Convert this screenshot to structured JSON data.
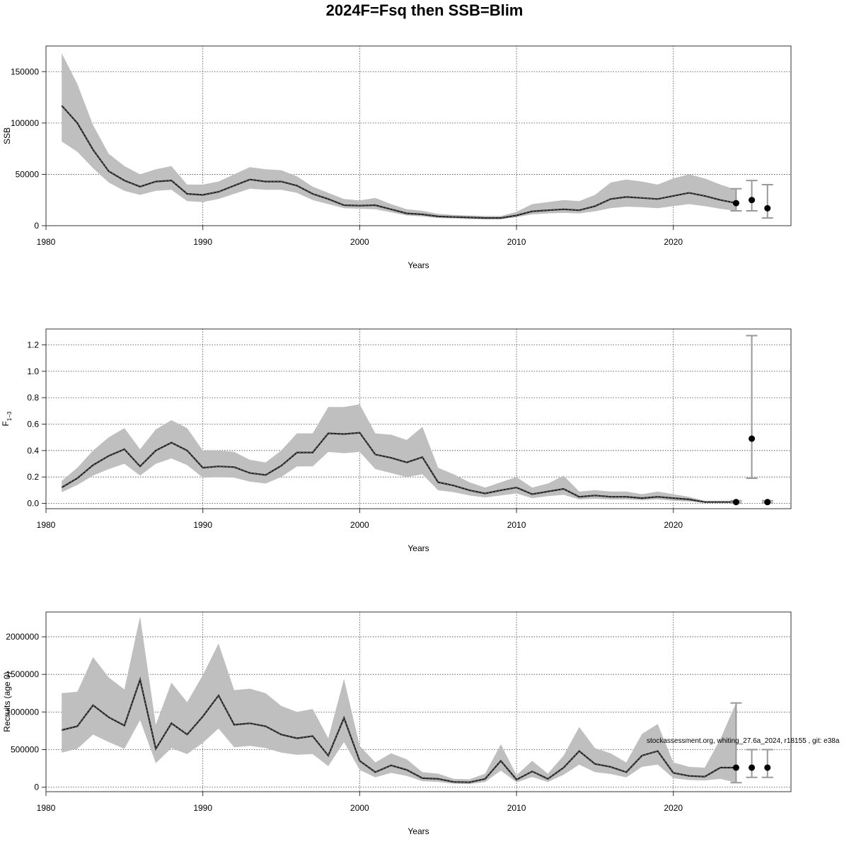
{
  "title": "2024F=Fsq then SSB=Blim",
  "footnote": "stockassessment.org, whiting_27.6a_2024, r18155 , git: e38a",
  "chart_data": [
    {
      "type": "line",
      "panel": "ssb",
      "xlabel": "Years",
      "ylabel": "SSB",
      "xlim": [
        1980,
        2027.5
      ],
      "ylim": [
        0,
        175000
      ],
      "xticks": [
        1980,
        1990,
        2000,
        2010,
        2020
      ],
      "yticks": [
        0,
        50000,
        100000,
        150000
      ],
      "ytick_labels": [
        "0",
        "50000",
        "100000",
        "150000"
      ],
      "grid": true,
      "x": [
        1981,
        1982,
        1983,
        1984,
        1985,
        1986,
        1987,
        1988,
        1989,
        1990,
        1991,
        1992,
        1993,
        1994,
        1995,
        1996,
        1997,
        1998,
        1999,
        2000,
        2001,
        2002,
        2003,
        2004,
        2005,
        2006,
        2007,
        2008,
        2009,
        2010,
        2011,
        2012,
        2013,
        2014,
        2015,
        2016,
        2017,
        2018,
        2019,
        2020,
        2021,
        2022,
        2023,
        2024
      ],
      "estimate": [
        117000,
        100000,
        74000,
        53000,
        44000,
        38000,
        43000,
        44000,
        31000,
        30000,
        33000,
        39000,
        45000,
        43000,
        43000,
        39000,
        31000,
        26000,
        20000,
        19500,
        20000,
        16000,
        12000,
        11000,
        9000,
        8500,
        8000,
        7500,
        7500,
        10000,
        14000,
        15000,
        16000,
        15000,
        19000,
        26000,
        28000,
        27000,
        26000,
        29000,
        32000,
        29000,
        25000,
        22000
      ],
      "lower": [
        82000,
        72000,
        56000,
        42000,
        34000,
        30000,
        34000,
        35000,
        24000,
        23000,
        26000,
        31000,
        36000,
        35000,
        35000,
        32000,
        25000,
        21000,
        17000,
        16500,
        16000,
        13000,
        10000,
        9000,
        7500,
        7000,
        6500,
        6200,
        6200,
        8500,
        11000,
        12000,
        12500,
        12000,
        14000,
        17000,
        18500,
        18000,
        17000,
        19000,
        21000,
        19000,
        16500,
        14500
      ],
      "upper": [
        168000,
        138000,
        98000,
        70000,
        58000,
        50000,
        55000,
        58000,
        40000,
        40000,
        43000,
        50000,
        57000,
        55000,
        54000,
        48000,
        38000,
        32000,
        26000,
        24500,
        27000,
        21000,
        16000,
        14500,
        11500,
        10500,
        10000,
        9500,
        9500,
        13500,
        21000,
        23000,
        25000,
        24000,
        30000,
        42000,
        45000,
        43000,
        40000,
        46000,
        50000,
        46000,
        40000,
        35000
      ],
      "forecast": {
        "x": [
          2024,
          2025,
          2026
        ],
        "value": [
          22000,
          25000,
          17000
        ],
        "lower": [
          14500,
          14500,
          7500
        ],
        "upper": [
          36000,
          44000,
          40000
        ]
      }
    },
    {
      "type": "line",
      "panel": "fbar",
      "xlabel": "Years",
      "ylabel": "F",
      "ylabel_sub": "1−3",
      "xlim": [
        1980,
        2027.5
      ],
      "ylim": [
        -0.04,
        1.32
      ],
      "xticks": [
        1980,
        1990,
        2000,
        2010,
        2020
      ],
      "yticks": [
        0.0,
        0.2,
        0.4,
        0.6,
        0.8,
        1.0,
        1.2
      ],
      "ytick_labels": [
        "0.0",
        "0.2",
        "0.4",
        "0.6",
        "0.8",
        "1.0",
        "1.2"
      ],
      "grid": true,
      "x": [
        1981,
        1982,
        1983,
        1984,
        1985,
        1986,
        1987,
        1988,
        1989,
        1990,
        1991,
        1992,
        1993,
        1994,
        1995,
        1996,
        1997,
        1998,
        1999,
        2000,
        2001,
        2002,
        2003,
        2004,
        2005,
        2006,
        2007,
        2008,
        2009,
        2010,
        2011,
        2012,
        2013,
        2014,
        2015,
        2016,
        2017,
        2018,
        2019,
        2020,
        2021,
        2022,
        2023,
        2024
      ],
      "estimate": [
        0.12,
        0.19,
        0.29,
        0.36,
        0.41,
        0.28,
        0.4,
        0.46,
        0.4,
        0.27,
        0.28,
        0.275,
        0.23,
        0.215,
        0.285,
        0.385,
        0.385,
        0.53,
        0.525,
        0.535,
        0.37,
        0.345,
        0.31,
        0.35,
        0.16,
        0.135,
        0.1,
        0.075,
        0.1,
        0.12,
        0.07,
        0.09,
        0.11,
        0.05,
        0.06,
        0.05,
        0.05,
        0.04,
        0.05,
        0.04,
        0.03,
        0.01,
        0.01,
        0.01
      ],
      "lower": [
        0.085,
        0.14,
        0.21,
        0.26,
        0.3,
        0.21,
        0.3,
        0.34,
        0.29,
        0.195,
        0.2,
        0.195,
        0.165,
        0.15,
        0.2,
        0.28,
        0.28,
        0.39,
        0.38,
        0.39,
        0.26,
        0.23,
        0.2,
        0.22,
        0.1,
        0.085,
        0.06,
        0.045,
        0.06,
        0.075,
        0.04,
        0.055,
        0.065,
        0.03,
        0.035,
        0.03,
        0.03,
        0.025,
        0.03,
        0.02,
        0.015,
        0.005,
        0.005,
        0.005
      ],
      "upper": [
        0.17,
        0.27,
        0.4,
        0.5,
        0.57,
        0.41,
        0.56,
        0.63,
        0.57,
        0.4,
        0.4,
        0.39,
        0.33,
        0.31,
        0.4,
        0.53,
        0.53,
        0.73,
        0.73,
        0.75,
        0.53,
        0.52,
        0.48,
        0.58,
        0.27,
        0.22,
        0.16,
        0.12,
        0.16,
        0.2,
        0.12,
        0.15,
        0.21,
        0.09,
        0.1,
        0.09,
        0.09,
        0.07,
        0.09,
        0.07,
        0.05,
        0.02,
        0.02,
        0.02
      ],
      "forecast": {
        "x": [
          2024,
          2025,
          2026
        ],
        "value": [
          0.01,
          0.49,
          0.01
        ],
        "lower": [
          0.005,
          0.19,
          0.005
        ],
        "upper": [
          0.02,
          1.27,
          0.02
        ]
      }
    },
    {
      "type": "line",
      "panel": "recruits",
      "xlabel": "Years",
      "ylabel": "Recruits (age 0)",
      "xlim": [
        1980,
        2027.5
      ],
      "ylim": [
        -60000,
        2330000
      ],
      "xticks": [
        1980,
        1990,
        2000,
        2010,
        2020
      ],
      "yticks": [
        0,
        500000,
        1000000,
        1500000,
        2000000
      ],
      "ytick_labels": [
        "0",
        "500000",
        "1000000",
        "1500000",
        "2000000"
      ],
      "grid": true,
      "x": [
        1981,
        1982,
        1983,
        1984,
        1985,
        1986,
        1987,
        1988,
        1989,
        1990,
        1991,
        1992,
        1993,
        1994,
        1995,
        1996,
        1997,
        1998,
        1999,
        2000,
        2001,
        2002,
        2003,
        2004,
        2005,
        2006,
        2007,
        2008,
        2009,
        2010,
        2011,
        2012,
        2013,
        2014,
        2015,
        2016,
        2017,
        2018,
        2019,
        2020,
        2021,
        2022,
        2023,
        2024
      ],
      "estimate": [
        760000,
        810000,
        1090000,
        930000,
        820000,
        1430000,
        510000,
        850000,
        700000,
        940000,
        1220000,
        830000,
        850000,
        810000,
        700000,
        650000,
        680000,
        420000,
        920000,
        350000,
        200000,
        290000,
        230000,
        120000,
        110000,
        70000,
        65000,
        110000,
        350000,
        100000,
        210000,
        110000,
        260000,
        480000,
        310000,
        270000,
        200000,
        420000,
        480000,
        190000,
        150000,
        140000,
        260000,
        260000
      ],
      "lower": [
        460000,
        510000,
        700000,
        600000,
        510000,
        890000,
        320000,
        520000,
        440000,
        590000,
        780000,
        530000,
        550000,
        520000,
        460000,
        430000,
        440000,
        280000,
        600000,
        230000,
        130000,
        190000,
        150000,
        80000,
        70000,
        45000,
        42000,
        70000,
        220000,
        65000,
        135000,
        70000,
        165000,
        300000,
        200000,
        175000,
        130000,
        270000,
        300000,
        120000,
        95000,
        90000,
        110000,
        60000
      ],
      "upper": [
        1250000,
        1270000,
        1730000,
        1460000,
        1300000,
        2270000,
        830000,
        1390000,
        1130000,
        1490000,
        1910000,
        1290000,
        1310000,
        1250000,
        1080000,
        1000000,
        1040000,
        650000,
        1440000,
        550000,
        330000,
        450000,
        370000,
        200000,
        180000,
        110000,
        105000,
        180000,
        570000,
        160000,
        350000,
        180000,
        420000,
        800000,
        520000,
        450000,
        330000,
        710000,
        840000,
        330000,
        270000,
        260000,
        640000,
        1120000
      ],
      "forecast": {
        "x": [
          2024,
          2025,
          2026
        ],
        "value": [
          260000,
          260000,
          260000
        ],
        "lower": [
          60000,
          130000,
          130000
        ],
        "upper": [
          1120000,
          500000,
          500000
        ]
      }
    }
  ]
}
